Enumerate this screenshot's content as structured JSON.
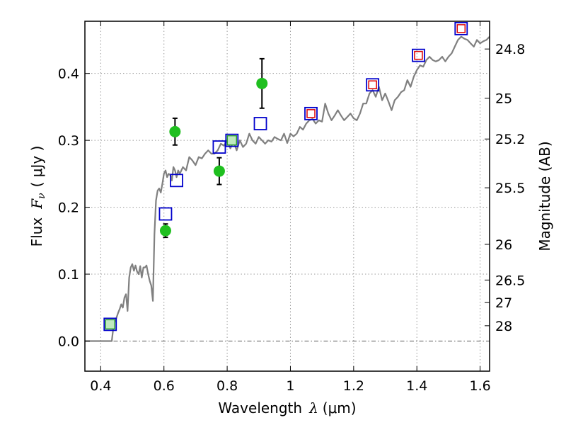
{
  "chart_data": {
    "type": "scatter",
    "title": "",
    "xlabel": {
      "prefix": "Wavelength",
      "symbol": "λ",
      "unit": "(μm)"
    },
    "ylabel": {
      "prefix": "Flux",
      "symbol": "F",
      "subscript": "ν",
      "unit": "( μJy )"
    },
    "y2label": "Magnitude (AB)",
    "xlim": [
      0.35,
      1.63
    ],
    "ylim": [
      -0.045,
      0.478
    ],
    "xticks": [
      0.4,
      0.6,
      0.8,
      1.0,
      1.2,
      1.4,
      1.6
    ],
    "xtick_labels": [
      "0.4",
      "0.6",
      "0.8",
      "1",
      "1.2",
      "1.4",
      "1.6"
    ],
    "yticks": [
      0.0,
      0.1,
      0.2,
      0.3,
      0.4
    ],
    "ytick_labels": [
      "0.0",
      "0.1",
      "0.2",
      "0.3",
      "0.4"
    ],
    "y2ticks": [
      {
        "label": "24.8",
        "mag": 24.8
      },
      {
        "label": "25",
        "mag": 25.0
      },
      {
        "label": "25.2",
        "mag": 25.2
      },
      {
        "label": "25.5",
        "mag": 25.5
      },
      {
        "label": "26",
        "mag": 26.0
      },
      {
        "label": "26.5",
        "mag": 26.5
      },
      {
        "label": "27",
        "mag": 27.0
      },
      {
        "label": "28",
        "mag": 28.0
      }
    ],
    "grid": true,
    "zero_line": true,
    "colors": {
      "model": "#808080",
      "observed": "#1fbf1f",
      "model_box": "#0000cc",
      "inner_green": "#2e9e2e",
      "inner_red": "#dd0000",
      "grid": "#9a9a9a"
    },
    "series": [
      {
        "name": "model spectrum",
        "kind": "line",
        "x": [
          0.35,
          0.42,
          0.435,
          0.44,
          0.445,
          0.45,
          0.455,
          0.46,
          0.465,
          0.47,
          0.475,
          0.48,
          0.485,
          0.49,
          0.495,
          0.5,
          0.505,
          0.51,
          0.515,
          0.52,
          0.525,
          0.53,
          0.535,
          0.54,
          0.545,
          0.55,
          0.555,
          0.56,
          0.565,
          0.57,
          0.575,
          0.58,
          0.585,
          0.59,
          0.595,
          0.6,
          0.605,
          0.61,
          0.615,
          0.62,
          0.625,
          0.63,
          0.635,
          0.64,
          0.645,
          0.65,
          0.66,
          0.67,
          0.68,
          0.69,
          0.7,
          0.71,
          0.72,
          0.73,
          0.74,
          0.75,
          0.76,
          0.77,
          0.78,
          0.79,
          0.8,
          0.81,
          0.82,
          0.83,
          0.84,
          0.85,
          0.86,
          0.87,
          0.88,
          0.89,
          0.9,
          0.91,
          0.92,
          0.93,
          0.94,
          0.95,
          0.96,
          0.97,
          0.98,
          0.99,
          1.0,
          1.01,
          1.02,
          1.03,
          1.04,
          1.05,
          1.06,
          1.07,
          1.08,
          1.09,
          1.1,
          1.11,
          1.12,
          1.13,
          1.14,
          1.15,
          1.16,
          1.17,
          1.18,
          1.19,
          1.2,
          1.21,
          1.22,
          1.23,
          1.24,
          1.25,
          1.26,
          1.27,
          1.28,
          1.29,
          1.3,
          1.31,
          1.32,
          1.33,
          1.34,
          1.35,
          1.36,
          1.37,
          1.38,
          1.39,
          1.4,
          1.41,
          1.42,
          1.43,
          1.44,
          1.45,
          1.46,
          1.47,
          1.48,
          1.49,
          1.5,
          1.51,
          1.52,
          1.53,
          1.54,
          1.55,
          1.56,
          1.57,
          1.58,
          1.59,
          1.6,
          1.61,
          1.62,
          1.63
        ],
        "y": [
          0.0,
          0.0,
          0.0,
          0.02,
          0.03,
          0.035,
          0.042,
          0.048,
          0.055,
          0.05,
          0.065,
          0.07,
          0.045,
          0.095,
          0.11,
          0.115,
          0.105,
          0.113,
          0.104,
          0.1,
          0.112,
          0.095,
          0.11,
          0.11,
          0.113,
          0.1,
          0.09,
          0.083,
          0.06,
          0.16,
          0.21,
          0.225,
          0.228,
          0.222,
          0.235,
          0.25,
          0.255,
          0.245,
          0.25,
          0.248,
          0.24,
          0.26,
          0.255,
          0.245,
          0.255,
          0.25,
          0.26,
          0.255,
          0.275,
          0.27,
          0.263,
          0.275,
          0.273,
          0.28,
          0.285,
          0.28,
          0.28,
          0.285,
          0.295,
          0.292,
          0.3,
          0.288,
          0.298,
          0.285,
          0.3,
          0.29,
          0.295,
          0.31,
          0.3,
          0.295,
          0.305,
          0.3,
          0.295,
          0.3,
          0.298,
          0.305,
          0.302,
          0.3,
          0.31,
          0.296,
          0.31,
          0.306,
          0.31,
          0.32,
          0.316,
          0.325,
          0.33,
          0.332,
          0.325,
          0.33,
          0.328,
          0.355,
          0.34,
          0.33,
          0.337,
          0.345,
          0.337,
          0.33,
          0.335,
          0.34,
          0.333,
          0.33,
          0.34,
          0.355,
          0.355,
          0.37,
          0.375,
          0.365,
          0.38,
          0.36,
          0.37,
          0.358,
          0.345,
          0.36,
          0.365,
          0.372,
          0.375,
          0.39,
          0.38,
          0.395,
          0.405,
          0.412,
          0.41,
          0.42,
          0.425,
          0.42,
          0.418,
          0.42,
          0.425,
          0.418,
          0.425,
          0.43,
          0.44,
          0.45,
          0.455,
          0.452,
          0.45,
          0.445,
          0.44,
          0.45,
          0.445,
          0.448,
          0.45,
          0.455
        ]
      },
      {
        "name": "model photometry",
        "kind": "box",
        "points": [
          {
            "x": 0.43,
            "y": 0.025,
            "inner": "green"
          },
          {
            "x": 0.605,
            "y": 0.19,
            "inner": "none"
          },
          {
            "x": 0.64,
            "y": 0.24,
            "inner": "none"
          },
          {
            "x": 0.775,
            "y": 0.29,
            "inner": "none"
          },
          {
            "x": 0.815,
            "y": 0.3,
            "inner": "green"
          },
          {
            "x": 0.905,
            "y": 0.325,
            "inner": "none"
          },
          {
            "x": 1.065,
            "y": 0.34,
            "inner": "red"
          },
          {
            "x": 1.26,
            "y": 0.383,
            "inner": "red"
          },
          {
            "x": 1.405,
            "y": 0.427,
            "inner": "red"
          },
          {
            "x": 1.54,
            "y": 0.467,
            "inner": "red"
          }
        ]
      },
      {
        "name": "observed photometry",
        "kind": "errorbar",
        "points": [
          {
            "x": 0.605,
            "y": 0.165,
            "err": 0.01
          },
          {
            "x": 0.635,
            "y": 0.313,
            "err": 0.02
          },
          {
            "x": 0.775,
            "y": 0.254,
            "err": 0.02
          },
          {
            "x": 0.91,
            "y": 0.385,
            "err": 0.037
          }
        ]
      }
    ]
  }
}
